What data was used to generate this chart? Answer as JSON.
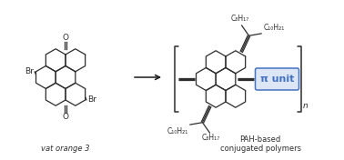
{
  "bg_color": "#ffffff",
  "line_color": "#2d2d2d",
  "blue_color": "#4472c4",
  "blue_fill": "#dce6f4",
  "arrow_color": "#1a1a1a",
  "label_vat": "vat orange 3",
  "label_pah": "PAH-based\nconjugated polymers",
  "label_pi": "π unit",
  "label_n": "n",
  "top_left_chain": "C₈H₁₇",
  "top_right_chain": "C₁₀H₂₁",
  "bot_left_chain": "C₁₀H₂₁",
  "bot_right_chain": "C₈H₁₇",
  "fig_width": 3.78,
  "fig_height": 1.76,
  "dpi": 100
}
